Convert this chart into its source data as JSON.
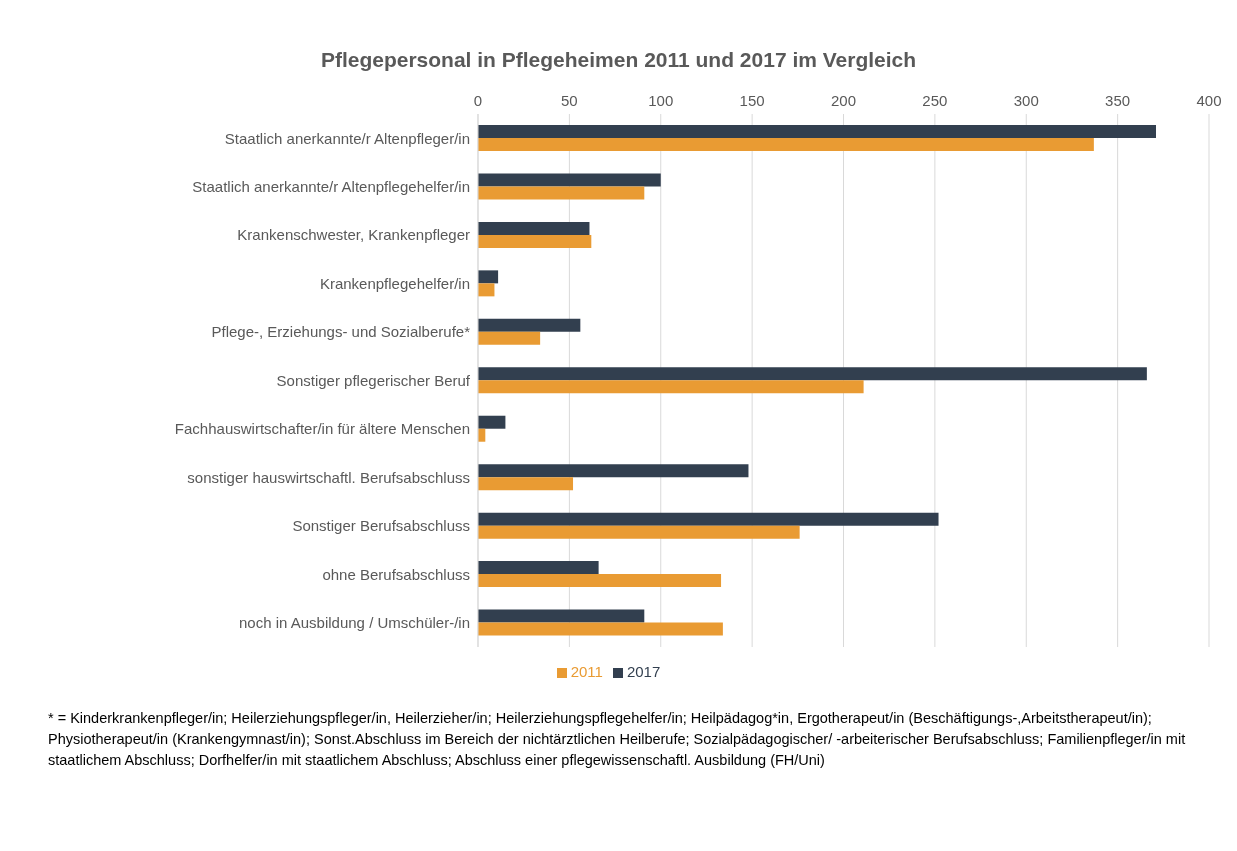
{
  "chart_data": {
    "type": "bar",
    "orientation": "horizontal",
    "title": "Pflegepersonal in Pflegeheimen 2011 und 2017 im Vergleich",
    "categories": [
      "Staatlich anerkannte/r Altenpfleger/in",
      "Staatlich anerkannte/r Altenpflegehelfer/in",
      "Krankenschwester, Krankenpfleger",
      "Krankenpflegehelfer/in",
      "Pflege-, Erziehungs- und Sozialberufe*",
      "Sonstiger pflegerischer Beruf",
      "Fachhauswirtschafter/in für ältere Menschen",
      "sonstiger hauswirtschaftl. Berufsabschluss",
      "Sonstiger Berufsabschluss",
      "ohne Berufsabschluss",
      "noch in Ausbildung / Umschüler-/in"
    ],
    "series": [
      {
        "name": "2017",
        "color": "#323f4f",
        "values": [
          371,
          100,
          61,
          11,
          56,
          366,
          15,
          148,
          252,
          66,
          91
        ]
      },
      {
        "name": "2011",
        "color": "#e99b33",
        "values": [
          337,
          91,
          62,
          9,
          34,
          211,
          4,
          52,
          176,
          133,
          134
        ]
      }
    ],
    "xlim": [
      0,
      400
    ],
    "xticks": [
      0,
      50,
      100,
      150,
      200,
      250,
      300,
      350,
      400
    ],
    "grid": "x",
    "legend": "bottom",
    "annotations": [
      "* = Kinderkrankenpfleger/in;  Heilerziehungspfleger/in, Heilerzieher/in; Heilerziehungspflegehelfer/in; Heilpädagog*in, Ergotherapeut/in (Beschäftigungs-,Arbeitstherapeut/in); Physiotherapeut/in (Krankengymnast/in); Sonst.Abschluss im Bereich der nichtärztlichen Heilberufe; Sozialpädagogischer/ -arbeiterischer Berufsabschluss; Familienpfleger/in mit staatlichem Abschluss; Dorfhelfer/in mit staatlichem Abschluss; Abschluss einer pflegewissenschaftl. Ausbildung (FH/Uni)"
    ]
  }
}
